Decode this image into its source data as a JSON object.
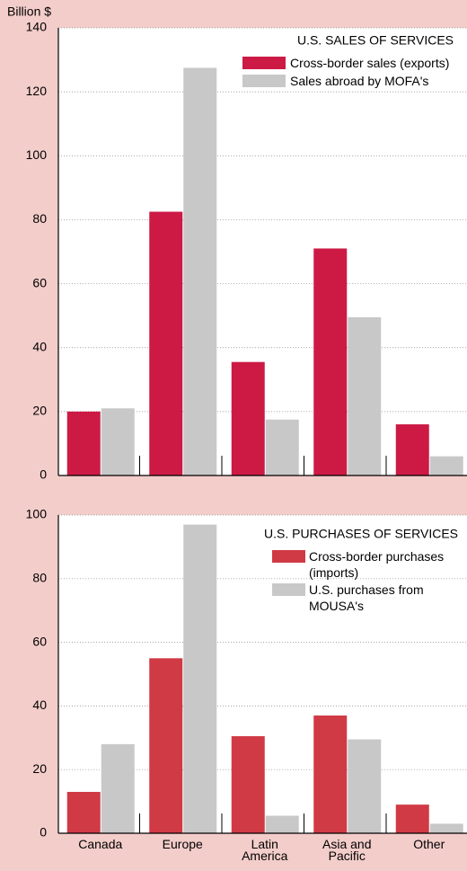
{
  "chart_data": [
    {
      "type": "bar",
      "y_label": "Billion $",
      "legend_title": "U.S. SALES  OF SERVICES",
      "series": [
        {
          "name": "Cross-border sales (exports)",
          "color": "#cc1a45",
          "values": [
            20,
            82.5,
            35.5,
            71,
            16
          ]
        },
        {
          "name": "Sales abroad by MOFA's",
          "color": "#c8c8c8",
          "values": [
            21,
            127.5,
            17.5,
            49.5,
            6
          ]
        }
      ],
      "ylim": [
        0,
        140
      ],
      "yticks": [
        0,
        20,
        40,
        60,
        80,
        100,
        120,
        140
      ],
      "grid": true
    },
    {
      "type": "bar",
      "legend_title": "U.S. PURCHASES  OF SERVICES",
      "categories": [
        "Canada",
        "Europe",
        "Latin America",
        "Asia and Pacific",
        "Other"
      ],
      "series": [
        {
          "name": "Cross-border purchases (imports)",
          "color": "#d03a45",
          "values": [
            13,
            55,
            30.5,
            37,
            9
          ]
        },
        {
          "name": "U.S. purchases from MOUSA's",
          "color": "#c8c8c8",
          "values": [
            28,
            97,
            5.5,
            29.5,
            3
          ]
        }
      ],
      "ylim": [
        0,
        100
      ],
      "yticks": [
        0,
        20,
        40,
        60,
        80,
        100
      ],
      "grid": true
    }
  ]
}
